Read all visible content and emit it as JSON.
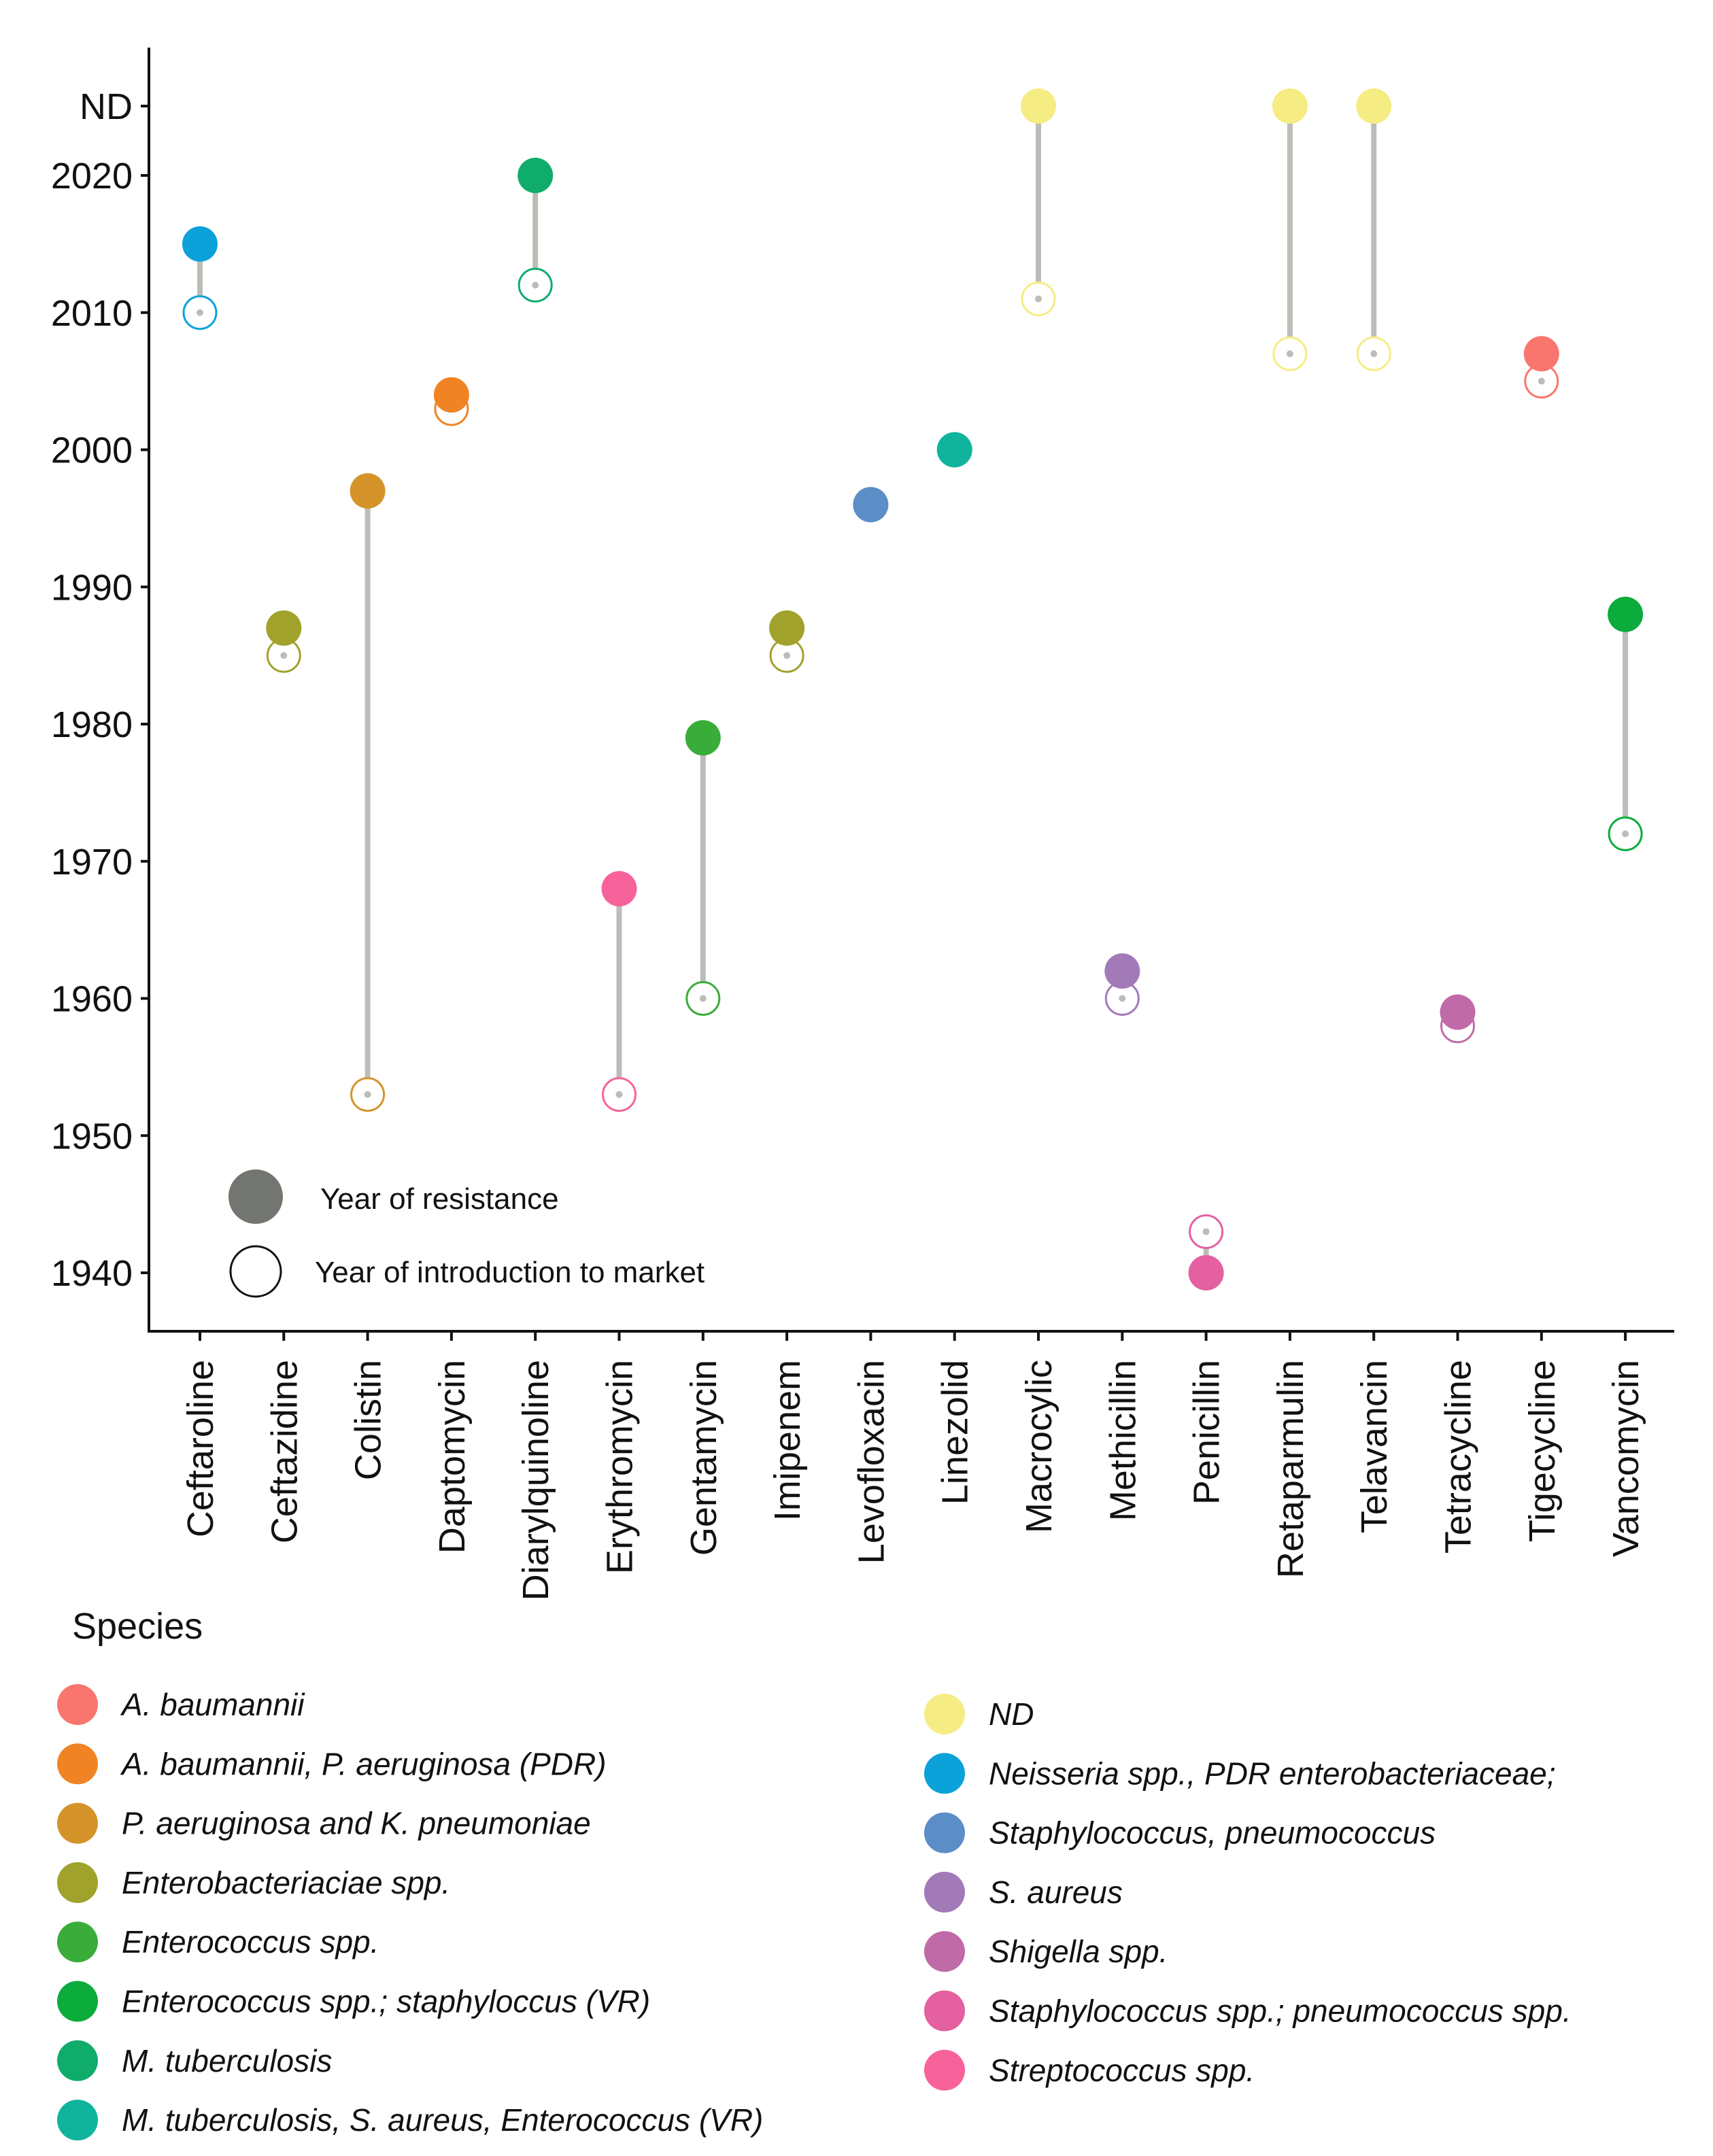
{
  "chart_data": {
    "type": "dumbbell",
    "title": "",
    "xlabel": "",
    "ylabel": "",
    "ylim": [
      1936,
      2028
    ],
    "y_ticks": [
      "1940",
      "1950",
      "1960",
      "1970",
      "1980",
      "1990",
      "2000",
      "2010",
      "2020",
      "ND"
    ],
    "grid": false,
    "inner_legend": {
      "placement": "bottom-left",
      "resistance_label": "Year of resistance",
      "introduction_label": "Year of introduction to market"
    },
    "species_legend": {
      "title": "Species",
      "placement": "bottom",
      "items": [
        {
          "name": "A. baumannii",
          "color": "#f8766d"
        },
        {
          "name": "A. baumannii, P. aeruginosa (PDR)",
          "color": "#f08424"
        },
        {
          "name": "P. aeruginosa and K. pneumoniae",
          "color": "#d4942a"
        },
        {
          "name": "Enterobacteriaciae spp.",
          "color": "#a0a22c"
        },
        {
          "name": "Enterococcus spp.",
          "color": "#3aac3a"
        },
        {
          "name": "Enterococcus spp.; staphyloccus (VR)",
          "color": "#0bab3c"
        },
        {
          "name": "M. tuberculosis",
          "color": "#0fac6c"
        },
        {
          "name": "M. tuberculosis, S. aureus, Enterococcus (VR)",
          "color": "#10b49c"
        },
        {
          "name": "ND",
          "color": "#f6ec84"
        },
        {
          "name": "Neisseria spp., PDR enterobacteriaceae;",
          "color": "#0aa2d8"
        },
        {
          "name": "Staphylococcus, pneumococcus",
          "color": "#5b8ec6"
        },
        {
          "name": "S. aureus",
          "color": "#a27ab8"
        },
        {
          "name": "Shigella spp.",
          "color": "#c06aa8"
        },
        {
          "name": "Staphylococcus spp.; pneumococcus spp.",
          "color": "#e460a0"
        },
        {
          "name": "Streptococcus spp.",
          "color": "#f7629a"
        }
      ]
    },
    "categories": [
      "Ceftaroline",
      "Ceftazidine",
      "Colistin",
      "Daptomycin",
      "Diarylquinoline",
      "Erythromycin",
      "Gentamycin",
      "Imipenem",
      "Levofloxacin",
      "Linezolid",
      "Macrocylic",
      "Methicillin",
      "Penicillin",
      "Retaparmulin",
      "Telavancin",
      "Tetracycline",
      "Tigecycline",
      "Vancomycin"
    ],
    "series": [
      {
        "name": "Year of resistance",
        "values": [
          2015,
          1987,
          1997,
          2004,
          2020,
          1968,
          1979,
          1987,
          1996,
          2000,
          "ND",
          1962,
          1940,
          "ND",
          "ND",
          1959,
          2007,
          1988
        ]
      },
      {
        "name": "Year of introduction to market",
        "values": [
          2010,
          1985,
          1953,
          2003,
          2012,
          1953,
          1960,
          1985,
          1996,
          2000,
          2011,
          1960,
          1943,
          2007,
          2007,
          1958,
          2005,
          1972
        ]
      }
    ],
    "species": [
      "Neisseria spp., PDR enterobacteriaceae;",
      "Enterobacteriaciae spp.",
      "P. aeruginosa and K. pneumoniae",
      "A. baumannii, P. aeruginosa (PDR)",
      "M. tuberculosis",
      "Streptococcus spp.",
      "Enterococcus spp.",
      "Enterobacteriaciae spp.",
      "Staphylococcus, pneumococcus",
      "M. tuberculosis, S. aureus, Enterococcus (VR)",
      "ND",
      "S. aureus",
      "Staphylococcus spp.; pneumococcus spp.",
      "ND",
      "ND",
      "Shigella spp.",
      "A. baumannii",
      "Enterococcus spp.; staphyloccus (VR)"
    ]
  }
}
